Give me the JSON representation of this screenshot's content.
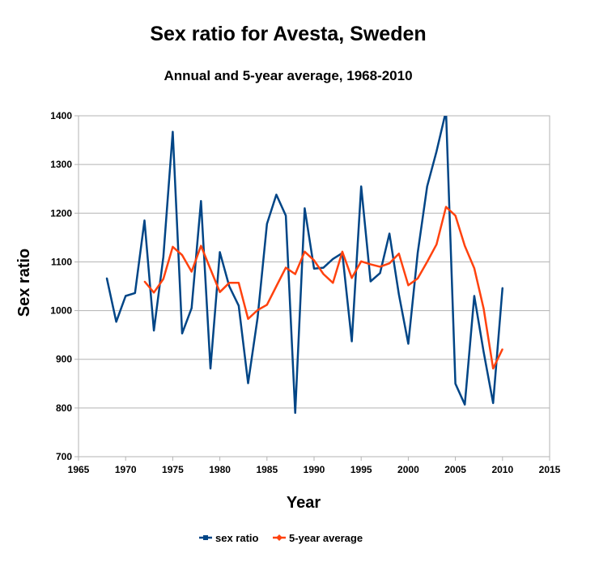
{
  "chart_data": {
    "type": "line",
    "title": "Sex ratio for Avesta, Sweden",
    "subtitle": "Annual and 5-year average, 1968-2010",
    "xlabel": "Year",
    "ylabel": "Sex ratio",
    "xlim": [
      1965,
      2015
    ],
    "ylim": [
      700,
      1400
    ],
    "xticks": [
      1965,
      1970,
      1975,
      1980,
      1985,
      1990,
      1995,
      2000,
      2005,
      2010,
      2015
    ],
    "yticks": [
      700,
      800,
      900,
      1000,
      1100,
      1200,
      1300,
      1400
    ],
    "grid": "horizontal",
    "legend_position": "bottom",
    "series": [
      {
        "name": "sex ratio",
        "color": "#004586",
        "x": [
          1968,
          1969,
          1970,
          1971,
          1972,
          1973,
          1974,
          1975,
          1976,
          1977,
          1978,
          1979,
          1980,
          1981,
          1982,
          1983,
          1984,
          1985,
          1986,
          1987,
          1988,
          1989,
          1990,
          1991,
          1992,
          1993,
          1994,
          1995,
          1996,
          1997,
          1998,
          1999,
          2000,
          2001,
          2002,
          2003,
          2004,
          2005,
          2006,
          2007,
          2008,
          2009,
          2010
        ],
        "values": [
          1067,
          977,
          1030,
          1036,
          1185,
          959,
          1110,
          1367,
          953,
          1005,
          1225,
          881,
          1120,
          1050,
          1010,
          851,
          985,
          1178,
          1238,
          1195,
          790,
          1210,
          1086,
          1088,
          1106,
          1118,
          937,
          1255,
          1060,
          1077,
          1158,
          1033,
          932,
          1118,
          1255,
          1327,
          1410,
          850,
          807,
          1030,
          915,
          810,
          1047
        ]
      },
      {
        "name": "5-year average",
        "color": "#ff420e",
        "x": [
          1972,
          1973,
          1974,
          1975,
          1976,
          1977,
          1978,
          1979,
          1980,
          1981,
          1982,
          1983,
          1984,
          1985,
          1986,
          1987,
          1988,
          1989,
          1990,
          1991,
          1992,
          1993,
          1994,
          1995,
          1996,
          1997,
          1998,
          1999,
          2000,
          2001,
          2002,
          2003,
          2004,
          2005,
          2006,
          2007,
          2008,
          2009,
          2010
        ],
        "values": [
          1060,
          1037,
          1065,
          1131,
          1114,
          1080,
          1133,
          1085,
          1038,
          1057,
          1057,
          983,
          1001,
          1012,
          1050,
          1088,
          1075,
          1121,
          1103,
          1075,
          1057,
          1121,
          1067,
          1101,
          1095,
          1090,
          1097,
          1117,
          1052,
          1066,
          1100,
          1136,
          1213,
          1195,
          1133,
          1087,
          1004,
          881,
          921
        ]
      }
    ]
  }
}
